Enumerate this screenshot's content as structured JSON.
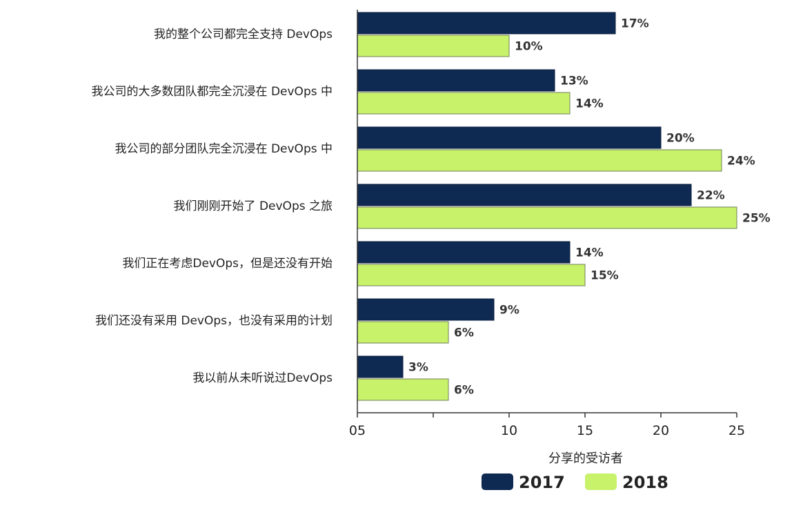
{
  "chart_data": {
    "type": "bar",
    "orientation": "horizontal",
    "categories": [
      "我的整个公司都完全支持 DevOps",
      "我公司的大多数团队都完全沉浸在 DevOps 中",
      "我公司的部分团队完全沉浸在 DevOps 中",
      "我们刚刚开始了 DevOps 之旅",
      "我们正在考虑DevOps，但是还没有开始",
      "我们还没有采用 DevOps，也没有采用的计划",
      "我以前从未听说过DevOps"
    ],
    "series": [
      {
        "name": "2017",
        "color": "#0f2a52",
        "values": [
          17,
          13,
          20,
          22,
          14,
          9,
          3
        ],
        "labels": [
          "17%",
          "13%",
          "20%",
          "22%",
          "14%",
          "9%",
          "3%"
        ]
      },
      {
        "name": "2018",
        "color": "#c8f26a",
        "values": [
          10,
          14,
          24,
          25,
          15,
          6,
          6
        ],
        "labels": [
          "10%",
          "14%",
          "24%",
          "25%",
          "15%",
          "6%",
          "6%"
        ]
      }
    ],
    "xlabel": "分享的受访者",
    "xlim": [
      0,
      25
    ],
    "ticks": [
      {
        "value": 0,
        "label": "05"
      },
      {
        "value": 10,
        "label": "10"
      },
      {
        "value": 15,
        "label": "15"
      },
      {
        "value": 20,
        "label": "20"
      },
      {
        "value": 25,
        "label": "25"
      }
    ],
    "minor_ticks": [
      5
    ],
    "legend_position": "bottom-center",
    "grid": false
  }
}
